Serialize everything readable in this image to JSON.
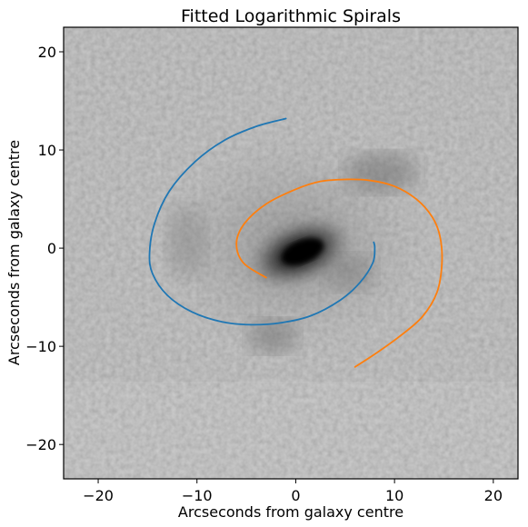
{
  "chart_data": {
    "type": "line",
    "title": "Fitted Logarithmic Spirals",
    "xlabel": "Arcseconds from galaxy centre",
    "ylabel": "Arcseconds from galaxy centre",
    "xlim": [
      -23.5,
      22.5
    ],
    "ylim": [
      -23.5,
      22.5
    ],
    "xticks": [
      -20,
      -10,
      0,
      10,
      20
    ],
    "yticks": [
      -20,
      -10,
      0,
      10,
      20
    ],
    "xtick_labels": [
      "−20",
      "−10",
      "0",
      "10",
      "20"
    ],
    "ytick_labels": [
      "−20",
      "−10",
      "0",
      "10",
      "20"
    ],
    "grid": false,
    "background": "greyscale galaxy image",
    "series": [
      {
        "color": "#1f77b4",
        "x": [
          -1.0,
          -4.0,
          -7.2,
          -10.2,
          -12.8,
          -14.3,
          -14.8,
          -14.5,
          -13.0,
          -10.5,
          -7.5,
          -4.5,
          -1.5,
          1.5,
          4.5,
          6.5,
          7.8,
          8.0,
          7.9
        ],
        "y": [
          13.2,
          12.4,
          11.0,
          8.8,
          5.8,
          2.5,
          -0.5,
          -2.6,
          -4.8,
          -6.5,
          -7.5,
          -7.8,
          -7.6,
          -6.9,
          -5.3,
          -3.5,
          -1.5,
          0.0,
          0.6
        ]
      },
      {
        "color": "#ff7f0e",
        "x": [
          -3.0,
          -5.3,
          -6.0,
          -5.2,
          -3.0,
          0.0,
          2.5,
          5.0,
          7.5,
          10.0,
          12.2,
          13.8,
          14.6,
          14.8,
          14.3,
          12.8,
          10.5,
          8.0,
          6.0
        ],
        "y": [
          -3.0,
          -1.5,
          0.5,
          2.5,
          4.5,
          6.0,
          6.8,
          7.0,
          6.9,
          6.3,
          5.0,
          3.2,
          1.2,
          -1.5,
          -4.5,
          -7.0,
          -9.0,
          -10.8,
          -12.1
        ]
      }
    ]
  }
}
